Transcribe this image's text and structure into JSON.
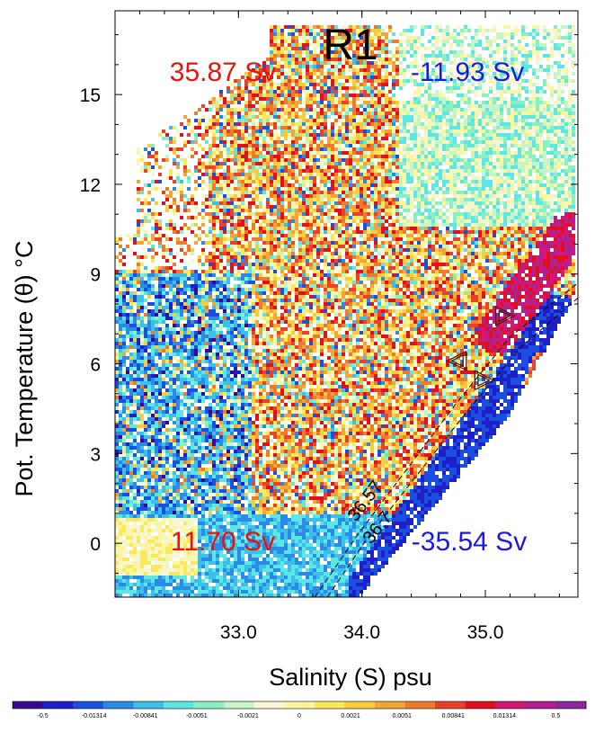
{
  "chart_data": {
    "type": "heatmap",
    "title": "R1",
    "xlabel": "Salinity (S) psu",
    "ylabel": "Pot. Temperature (θ) °C",
    "xlim": [
      32.0,
      35.75
    ],
    "ylim": [
      -1.8,
      17.8
    ],
    "x_ticks": [
      {
        "value": 33.0,
        "label": "33.0"
      },
      {
        "value": 34.0,
        "label": "34.0"
      },
      {
        "value": 35.0,
        "label": "35.0"
      }
    ],
    "y_ticks": [
      {
        "value": 0,
        "label": "0"
      },
      {
        "value": 3,
        "label": "3"
      },
      {
        "value": 6,
        "label": "6"
      },
      {
        "value": 9,
        "label": "9"
      },
      {
        "value": 12,
        "label": "12"
      },
      {
        "value": 15,
        "label": "15"
      }
    ],
    "quadrant_labels": [
      {
        "text": "35.87 Sv",
        "color": "#e8130b",
        "position": "top-left"
      },
      {
        "text": "-11.93 Sv",
        "color": "#1d1adf",
        "position": "top-right"
      },
      {
        "text": "11.70 Sv",
        "color": "#e8130b",
        "position": "bottom-left"
      },
      {
        "text": "-35.54 Sv",
        "color": "#1d1adf",
        "position": "bottom-right"
      }
    ],
    "density_contours": [
      {
        "label": "36.57",
        "points": [
          [
            33.62,
            -1.8
          ],
          [
            33.95,
            0.2
          ],
          [
            34.35,
            2.4
          ],
          [
            34.75,
            4.6
          ],
          [
            35.2,
            6.9
          ],
          [
            35.75,
            8.7
          ]
        ]
      },
      {
        "label": "36.7",
        "points": [
          [
            33.72,
            -1.8
          ],
          [
            34.05,
            0.2
          ],
          [
            34.45,
            2.3
          ],
          [
            34.85,
            4.4
          ],
          [
            35.3,
            6.6
          ],
          [
            35.75,
            8.2
          ]
        ]
      }
    ],
    "markers": [
      {
        "shape": "triangle-right",
        "x": 35.15,
        "y": 7.6
      },
      {
        "shape": "triangle-left",
        "x": 34.78,
        "y": 6.1
      },
      {
        "shape": "triangle-right",
        "x": 34.98,
        "y": 5.45
      }
    ],
    "colorbar": {
      "tick_labels": [
        "-0.5",
        "-0.01314",
        "-0.00841",
        "-0.0051",
        "-0.0021",
        "0",
        "0.0021",
        "0.0051",
        "0.00841",
        "0.01314",
        "0.5"
      ],
      "colors": [
        "#3a0a8c",
        "#1f1fc8",
        "#1a4fe0",
        "#2a8ae6",
        "#3cc0ea",
        "#5de6e6",
        "#8af0c4",
        "#c8f5c8",
        "#f6f7d2",
        "#fbf7a0",
        "#fbe860",
        "#f6cd3e",
        "#f3a535",
        "#ee7a2c",
        "#e8432a",
        "#e01020",
        "#d01878",
        "#b0208e",
        "#8a2a9a"
      ]
    }
  }
}
